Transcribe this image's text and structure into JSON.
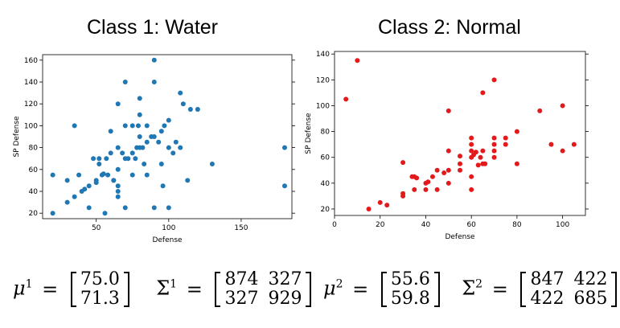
{
  "titles": [
    "Class 1: Water",
    "Class 2: Normal"
  ],
  "colors": {
    "class1": "#1f77b4",
    "class2": "#e31a1c"
  },
  "chart_data": [
    {
      "type": "scatter",
      "title": "Class 1: Water",
      "xlabel": "Defense",
      "ylabel": "SP Defense",
      "xlim": [
        13,
        185
      ],
      "ylim": [
        15,
        165
      ],
      "xticks": [
        50,
        100,
        150
      ],
      "yticks": [
        20,
        40,
        60,
        80,
        100,
        120,
        140,
        160
      ],
      "points": [
        [
          20,
          55
        ],
        [
          20,
          20
        ],
        [
          30,
          30
        ],
        [
          30,
          50
        ],
        [
          35,
          35
        ],
        [
          35,
          100
        ],
        [
          38,
          55
        ],
        [
          40,
          40
        ],
        [
          42,
          42
        ],
        [
          45,
          25
        ],
        [
          45,
          45
        ],
        [
          48,
          70
        ],
        [
          50,
          50
        ],
        [
          50,
          48
        ],
        [
          52,
          65
        ],
        [
          52,
          70
        ],
        [
          54,
          55
        ],
        [
          55,
          56
        ],
        [
          56,
          20
        ],
        [
          57,
          70
        ],
        [
          58,
          55
        ],
        [
          60,
          75
        ],
        [
          60,
          95
        ],
        [
          62,
          50
        ],
        [
          62,
          50
        ],
        [
          65,
          35
        ],
        [
          65,
          40
        ],
        [
          65,
          45
        ],
        [
          65,
          60
        ],
        [
          65,
          80
        ],
        [
          65,
          120
        ],
        [
          68,
          75
        ],
        [
          70,
          25
        ],
        [
          70,
          70
        ],
        [
          70,
          100
        ],
        [
          70,
          140
        ],
        [
          72,
          70
        ],
        [
          75,
          75
        ],
        [
          75,
          100
        ],
        [
          75,
          55
        ],
        [
          77,
          70
        ],
        [
          78,
          80
        ],
        [
          79,
          100
        ],
        [
          80,
          80
        ],
        [
          80,
          90
        ],
        [
          80,
          125
        ],
        [
          80,
          110
        ],
        [
          82,
          80
        ],
        [
          83,
          65
        ],
        [
          85,
          100
        ],
        [
          85,
          55
        ],
        [
          85,
          85
        ],
        [
          88,
          90
        ],
        [
          90,
          25
        ],
        [
          90,
          90
        ],
        [
          90,
          140
        ],
        [
          90,
          160
        ],
        [
          93,
          85
        ],
        [
          95,
          65
        ],
        [
          95,
          95
        ],
        [
          96,
          45
        ],
        [
          97,
          100
        ],
        [
          100,
          105
        ],
        [
          100,
          80
        ],
        [
          100,
          25
        ],
        [
          103,
          75
        ],
        [
          105,
          85
        ],
        [
          108,
          130
        ],
        [
          108,
          80
        ],
        [
          110,
          120
        ],
        [
          113,
          50
        ],
        [
          115,
          115
        ],
        [
          120,
          115
        ],
        [
          130,
          65
        ],
        [
          180,
          80
        ],
        [
          180,
          45
        ]
      ]
    },
    {
      "type": "scatter",
      "title": "Class 2: Normal",
      "xlabel": "Defense",
      "ylabel": "SP Defense",
      "xlim": [
        0,
        110
      ],
      "ylim": [
        15,
        142
      ],
      "xticks": [
        0,
        20,
        40,
        60,
        80,
        100
      ],
      "yticks": [
        20,
        40,
        60,
        80,
        100,
        120,
        140
      ],
      "points": [
        [
          5,
          105
        ],
        [
          10,
          135
        ],
        [
          15,
          20
        ],
        [
          20,
          25
        ],
        [
          23,
          23
        ],
        [
          30,
          30
        ],
        [
          30,
          32
        ],
        [
          30,
          56
        ],
        [
          34,
          45
        ],
        [
          35,
          35
        ],
        [
          35,
          45
        ],
        [
          36,
          44
        ],
        [
          40,
          35
        ],
        [
          40,
          40
        ],
        [
          41,
          41
        ],
        [
          43,
          45
        ],
        [
          45,
          35
        ],
        [
          45,
          50
        ],
        [
          48,
          48
        ],
        [
          50,
          40
        ],
        [
          50,
          50
        ],
        [
          50,
          65
        ],
        [
          50,
          96
        ],
        [
          55,
          55
        ],
        [
          55,
          50
        ],
        [
          55,
          61
        ],
        [
          60,
          60
        ],
        [
          60,
          35
        ],
        [
          60,
          45
        ],
        [
          60,
          65
        ],
        [
          60,
          70
        ],
        [
          60,
          75
        ],
        [
          61,
          62
        ],
        [
          62,
          64
        ],
        [
          63,
          54
        ],
        [
          64,
          60
        ],
        [
          65,
          55
        ],
        [
          65,
          65
        ],
        [
          65,
          110
        ],
        [
          66,
          55
        ],
        [
          70,
          60
        ],
        [
          70,
          65
        ],
        [
          70,
          70
        ],
        [
          70,
          75
        ],
        [
          70,
          120
        ],
        [
          75,
          75
        ],
        [
          75,
          70
        ],
        [
          80,
          80
        ],
        [
          80,
          55
        ],
        [
          90,
          96
        ],
        [
          95,
          70
        ],
        [
          100,
          65
        ],
        [
          100,
          100
        ],
        [
          105,
          70
        ]
      ]
    }
  ],
  "formulas": {
    "class1": {
      "mu_label": "μ",
      "sup": "1",
      "equals": "=",
      "mean": [
        "75.0",
        "71.3"
      ],
      "sigma_label": "Σ",
      "cov": [
        [
          "874",
          "327"
        ],
        [
          "327",
          "929"
        ]
      ]
    },
    "class2": {
      "mu_label": "μ",
      "sup": "2",
      "equals": "=",
      "mean": [
        "55.6",
        "59.8"
      ],
      "sigma_label": "Σ",
      "cov": [
        [
          "847",
          "422"
        ],
        [
          "422",
          "685"
        ]
      ]
    }
  }
}
